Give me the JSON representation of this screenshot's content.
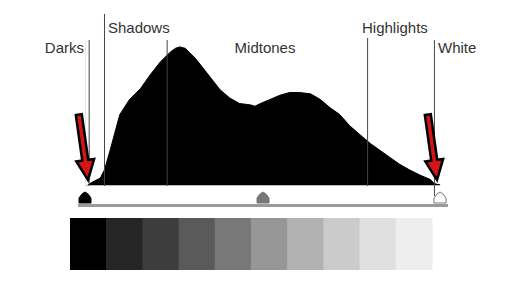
{
  "chart_data": {
    "type": "area",
    "x": [
      2,
      5,
      11,
      14,
      18,
      22,
      25,
      32,
      40,
      47,
      54,
      61,
      65,
      68,
      72,
      75,
      79,
      83,
      90,
      97,
      104,
      111,
      119,
      122,
      126,
      133,
      140,
      147,
      154,
      162,
      169,
      176,
      183,
      190,
      198,
      205,
      212,
      219,
      226,
      233,
      241,
      248,
      251,
      255
    ],
    "values": [
      0,
      2,
      5,
      11,
      25,
      40,
      51,
      62,
      70,
      80,
      89,
      96,
      99,
      100,
      99,
      96,
      92,
      87,
      78,
      69,
      63,
      59,
      58,
      57,
      59,
      62,
      65,
      67,
      67,
      66,
      62,
      56,
      51,
      43,
      36,
      30,
      25,
      20,
      15,
      11,
      7,
      4,
      1,
      0
    ],
    "xlim": [
      0,
      255
    ],
    "ylim": [
      0,
      105
    ],
    "color": "#000000",
    "tick_labels": false,
    "annotations": [
      "Darks",
      "Shadows",
      "Midtones",
      "Highlights",
      "White"
    ],
    "vlines": [
      3,
      14,
      59,
      203,
      251
    ]
  }
}
